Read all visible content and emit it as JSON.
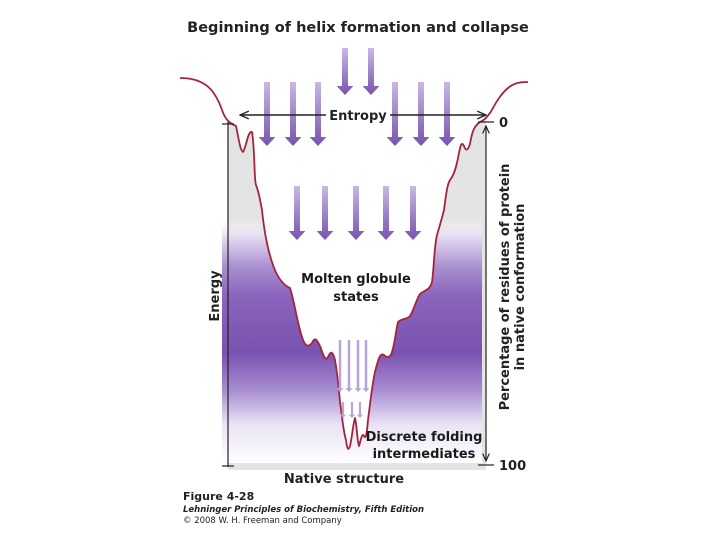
{
  "diagram": {
    "title": "Beginning of helix formation and collapse",
    "entropy_label": "Entropy",
    "energy_label": "Energy",
    "percentage_label_line1": "Percentage of residues of protein",
    "percentage_label_line2": "in native conformation",
    "scale_top": "0",
    "scale_bottom": "100",
    "molten_label_line1": "Molten globule",
    "molten_label_line2": "states",
    "discrete_label_line1": "Discrete folding",
    "discrete_label_line2": "intermediates",
    "native_label": "Native structure"
  },
  "caption": {
    "figure": "Figure 4-28",
    "book": "Lehninger Principles of Biochemistry, Fifth Edition",
    "copyright": "© 2008 W. H. Freeman and Company"
  },
  "colors": {
    "funnel_outline": "#a3243c",
    "funnel_fill": "#e4e4e4",
    "purple": "#7a52b0",
    "arrow_light": "#b7a4d8"
  }
}
